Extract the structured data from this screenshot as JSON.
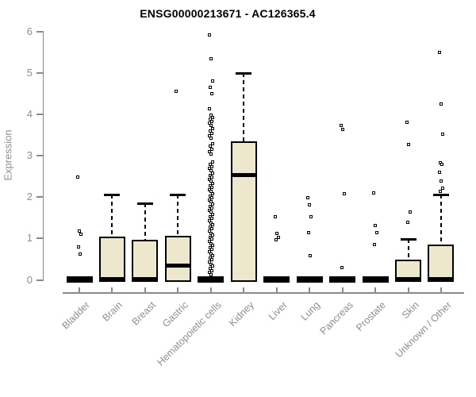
{
  "header": {
    "title": "ENSG00000213671 - AC126365.4"
  },
  "colors": {
    "box_fill": "#ECE7CD",
    "box_border": "#000000",
    "axis": "#8A8A8A",
    "tick_label": "#8E8E8E",
    "title": "#000000"
  },
  "chart_data": {
    "type": "boxplot",
    "title": "ENSG00000213671 - AC126365.4",
    "xlabel": "",
    "ylabel": "Expression",
    "ylim": [
      0,
      6
    ],
    "yticks": [
      0,
      1,
      2,
      3,
      4,
      5,
      6
    ],
    "grid": false,
    "legend": false,
    "categories": [
      "Bladder",
      "Brain",
      "Breast",
      "Gastric",
      "Hematopoietic cells",
      "Kidney",
      "Liver",
      "Lung",
      "Pancreas",
      "Prostate",
      "Skin",
      "Unknown / Other"
    ],
    "series": [
      {
        "name": "Bladder",
        "q1": 0,
        "median": 0,
        "q3": 0,
        "whisker_low": 0,
        "whisker_high": 0,
        "outliers": [
          2.47,
          1.17,
          1.1,
          0.78,
          0.62
        ]
      },
      {
        "name": "Brain",
        "q1": 0,
        "median": 0,
        "q3": 1.03,
        "whisker_low": 0,
        "whisker_high": 2.05,
        "outliers": []
      },
      {
        "name": "Breast",
        "q1": 0,
        "median": 0,
        "q3": 0.95,
        "whisker_low": 0,
        "whisker_high": 1.84,
        "outliers": []
      },
      {
        "name": "Gastric",
        "q1": 0,
        "median": 0.33,
        "q3": 1.05,
        "whisker_low": 0,
        "whisker_high": 2.05,
        "outliers": [
          4.55
        ]
      },
      {
        "name": "Hematopoietic cells",
        "q1": 0,
        "median": 0,
        "q3": 0,
        "whisker_low": 0,
        "whisker_high": 0,
        "outliers": [
          5.9,
          5.33,
          4.8,
          4.63,
          4.48,
          4.12,
          3.97,
          3.92,
          3.87,
          3.82,
          3.77,
          3.72,
          3.65,
          3.58,
          3.52,
          3.47,
          3.42,
          3.28,
          3.22,
          3.15,
          3.08,
          3.02,
          2.83,
          2.78,
          2.73,
          2.68,
          2.62,
          2.57,
          2.52,
          2.47,
          2.42,
          2.37,
          2.32,
          2.27,
          2.22,
          2.17,
          2.12,
          2.07,
          2.02,
          1.97,
          1.92,
          1.87,
          1.82,
          1.77,
          1.72,
          1.67,
          1.62,
          1.57,
          1.52,
          1.47,
          1.42,
          1.37,
          1.32,
          1.27,
          1.22,
          1.17,
          1.12,
          1.07,
          1.02,
          0.97,
          0.92,
          0.87,
          0.82,
          0.77,
          0.72,
          0.67,
          0.62,
          0.57,
          0.52,
          0.47,
          0.42,
          0.37,
          0.32,
          0.27,
          0.22,
          0.17,
          0.12
        ]
      },
      {
        "name": "Kidney",
        "q1": 0,
        "median": 2.53,
        "q3": 3.33,
        "whisker_low": 0,
        "whisker_high": 4.98,
        "outliers": []
      },
      {
        "name": "Liver",
        "q1": 0,
        "median": 0,
        "q3": 0,
        "whisker_low": 0,
        "whisker_high": 0,
        "outliers": [
          1.51,
          1.11,
          1.02,
          0.95
        ]
      },
      {
        "name": "Lung",
        "q1": 0,
        "median": 0,
        "q3": 0,
        "whisker_low": 0,
        "whisker_high": 0,
        "outliers": [
          1.97,
          1.8,
          1.51,
          1.13,
          0.58
        ]
      },
      {
        "name": "Pancreas",
        "q1": 0,
        "median": 0,
        "q3": 0,
        "whisker_low": 0,
        "whisker_high": 0,
        "outliers": [
          3.72,
          3.62,
          2.07,
          0.28
        ]
      },
      {
        "name": "Prostate",
        "q1": 0,
        "median": 0,
        "q3": 0,
        "whisker_low": 0,
        "whisker_high": 0,
        "outliers": [
          2.08,
          1.3,
          1.13,
          0.84
        ]
      },
      {
        "name": "Skin",
        "q1": 0,
        "median": 0,
        "q3": 0.47,
        "whisker_low": 0,
        "whisker_high": 0.98,
        "outliers": [
          3.79,
          3.26,
          1.63,
          1.38
        ]
      },
      {
        "name": "Unknown / Other",
        "q1": 0,
        "median": 0,
        "q3": 0.85,
        "whisker_low": 0,
        "whisker_high": 2.05,
        "outliers": [
          5.48,
          4.23,
          3.5,
          2.82,
          2.78,
          2.58,
          2.37,
          2.2,
          2.12
        ]
      }
    ]
  }
}
